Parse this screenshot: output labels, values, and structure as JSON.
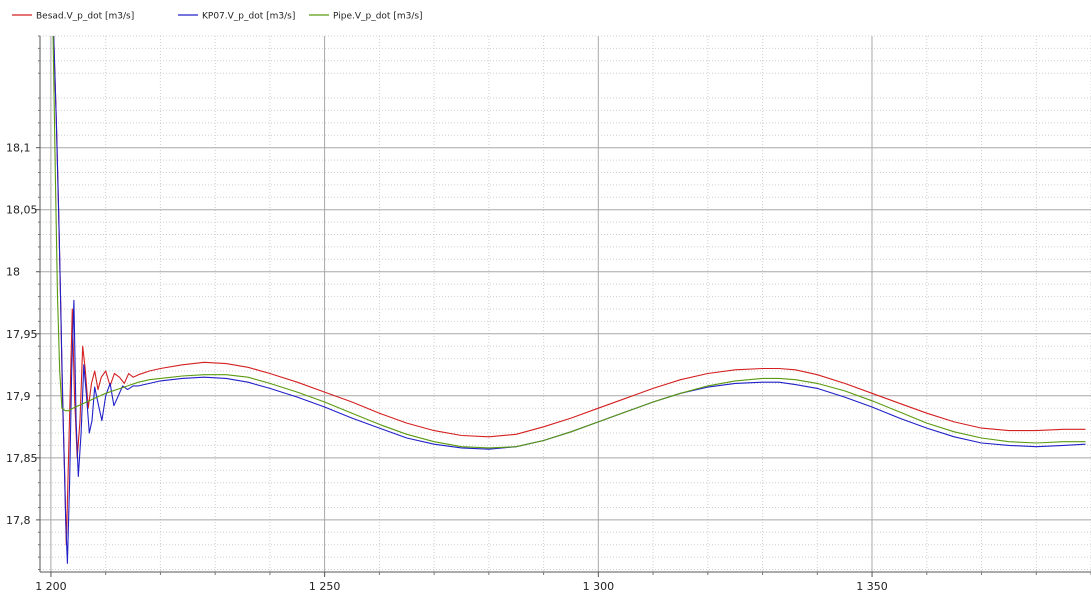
{
  "chart_data": {
    "type": "line",
    "title": "",
    "xlabel": "",
    "ylabel": "",
    "xlim": [
      1198,
      1390
    ],
    "ylim": [
      17.758,
      18.19
    ],
    "x_ticks": [
      {
        "value": 1200,
        "label": "1 200"
      },
      {
        "value": 1250,
        "label": "1 250"
      },
      {
        "value": 1300,
        "label": "1 300"
      },
      {
        "value": 1350,
        "label": "1 350"
      }
    ],
    "y_ticks": [
      {
        "value": 18.1,
        "label": "18,1"
      },
      {
        "value": 18.05,
        "label": "18,05"
      },
      {
        "value": 18.0,
        "label": "18"
      },
      {
        "value": 17.95,
        "label": "17,95"
      },
      {
        "value": 17.9,
        "label": "17,9"
      },
      {
        "value": 17.85,
        "label": "17,85"
      },
      {
        "value": 17.8,
        "label": "17,8"
      }
    ],
    "grid": true,
    "legend_position": "top-left",
    "series": [
      {
        "name": "Besad.V_p_dot [m3/s]",
        "color": "#d42020",
        "x": [
          1200.5,
          1201,
          1201.4,
          1201.8,
          1202.1,
          1202.5,
          1202.8,
          1203.1,
          1203.5,
          1203.9,
          1204.3,
          1204.8,
          1205.3,
          1205.8,
          1206.3,
          1206.8,
          1207.4,
          1208,
          1208.6,
          1209.2,
          1210,
          1210.8,
          1211.6,
          1212.5,
          1213.4,
          1214.2,
          1215,
          1216,
          1218,
          1220,
          1224,
          1228,
          1232,
          1236,
          1240,
          1245,
          1250,
          1255,
          1260,
          1265,
          1270,
          1275,
          1280,
          1285,
          1290,
          1295,
          1300,
          1305,
          1310,
          1315,
          1320,
          1325,
          1330,
          1333,
          1336,
          1340,
          1345,
          1350,
          1355,
          1360,
          1365,
          1370,
          1375,
          1380,
          1385,
          1389
        ],
        "y": [
          18.19,
          18.12,
          18.05,
          17.97,
          17.9,
          17.84,
          17.78,
          17.83,
          17.9,
          17.97,
          17.9,
          17.85,
          17.88,
          17.94,
          17.92,
          17.89,
          17.91,
          17.92,
          17.905,
          17.915,
          17.92,
          17.908,
          17.918,
          17.915,
          17.91,
          17.918,
          17.915,
          17.917,
          17.92,
          17.922,
          17.925,
          17.927,
          17.926,
          17.923,
          17.918,
          17.911,
          17.903,
          17.895,
          17.886,
          17.878,
          17.872,
          17.868,
          17.867,
          17.869,
          17.875,
          17.882,
          17.89,
          17.898,
          17.906,
          17.913,
          17.918,
          17.921,
          17.922,
          17.922,
          17.921,
          17.917,
          17.91,
          17.902,
          17.894,
          17.886,
          17.879,
          17.874,
          17.872,
          17.872,
          17.873,
          17.873
        ]
      },
      {
        "name": "KP07.V_p_dot [m3/s]",
        "color": "#2020c8",
        "x": [
          1200.5,
          1201,
          1201.5,
          1201.9,
          1202.3,
          1202.7,
          1203,
          1203.4,
          1203.8,
          1204.2,
          1204.6,
          1205,
          1205.5,
          1206,
          1206.5,
          1207,
          1207.5,
          1208,
          1208.7,
          1209.3,
          1210,
          1210.8,
          1211.5,
          1212.3,
          1213.1,
          1214,
          1215,
          1216,
          1218,
          1220,
          1224,
          1228,
          1232,
          1236,
          1240,
          1245,
          1250,
          1255,
          1260,
          1265,
          1270,
          1275,
          1280,
          1285,
          1290,
          1295,
          1300,
          1305,
          1310,
          1315,
          1320,
          1325,
          1330,
          1333,
          1336,
          1340,
          1345,
          1350,
          1355,
          1360,
          1365,
          1370,
          1375,
          1380,
          1385,
          1389
        ],
        "y": [
          18.19,
          18.12,
          18.03,
          17.95,
          17.87,
          17.8,
          17.765,
          17.83,
          17.92,
          17.977,
          17.88,
          17.835,
          17.87,
          17.925,
          17.9,
          17.87,
          17.88,
          17.907,
          17.892,
          17.88,
          17.9,
          17.91,
          17.892,
          17.9,
          17.908,
          17.905,
          17.908,
          17.908,
          17.91,
          17.912,
          17.914,
          17.915,
          17.914,
          17.911,
          17.906,
          17.899,
          17.891,
          17.882,
          17.874,
          17.866,
          17.861,
          17.858,
          17.857,
          17.859,
          17.864,
          17.871,
          17.879,
          17.887,
          17.895,
          17.902,
          17.907,
          17.91,
          17.911,
          17.911,
          17.909,
          17.906,
          17.899,
          17.891,
          17.882,
          17.874,
          17.867,
          17.862,
          17.86,
          17.859,
          17.86,
          17.861
        ]
      },
      {
        "name": "Pipe.V_p_dot [m3/s]",
        "color": "#5a9a10",
        "x": [
          1200.4,
          1200.8,
          1201.2,
          1201.6,
          1202,
          1202.6,
          1203.3,
          1204,
          1205,
          1206,
          1207,
          1208,
          1209,
          1210,
          1212,
          1214,
          1216,
          1218,
          1220,
          1224,
          1228,
          1232,
          1236,
          1240,
          1245,
          1250,
          1255,
          1260,
          1265,
          1270,
          1275,
          1280,
          1285,
          1290,
          1295,
          1300,
          1305,
          1310,
          1315,
          1320,
          1325,
          1330,
          1333,
          1336,
          1340,
          1345,
          1350,
          1355,
          1360,
          1365,
          1370,
          1375,
          1380,
          1385,
          1389
        ],
        "y": [
          18.19,
          18.08,
          17.98,
          17.92,
          17.89,
          17.888,
          17.888,
          17.89,
          17.892,
          17.894,
          17.896,
          17.898,
          17.9,
          17.902,
          17.905,
          17.908,
          17.911,
          17.913,
          17.914,
          17.916,
          17.917,
          17.917,
          17.915,
          17.91,
          17.903,
          17.895,
          17.886,
          17.877,
          17.869,
          17.863,
          17.859,
          17.858,
          17.859,
          17.864,
          17.871,
          17.879,
          17.887,
          17.895,
          17.902,
          17.908,
          17.912,
          17.914,
          17.914,
          17.913,
          17.91,
          17.904,
          17.896,
          17.887,
          17.878,
          17.871,
          17.866,
          17.863,
          17.862,
          17.863,
          17.863
        ]
      }
    ]
  }
}
